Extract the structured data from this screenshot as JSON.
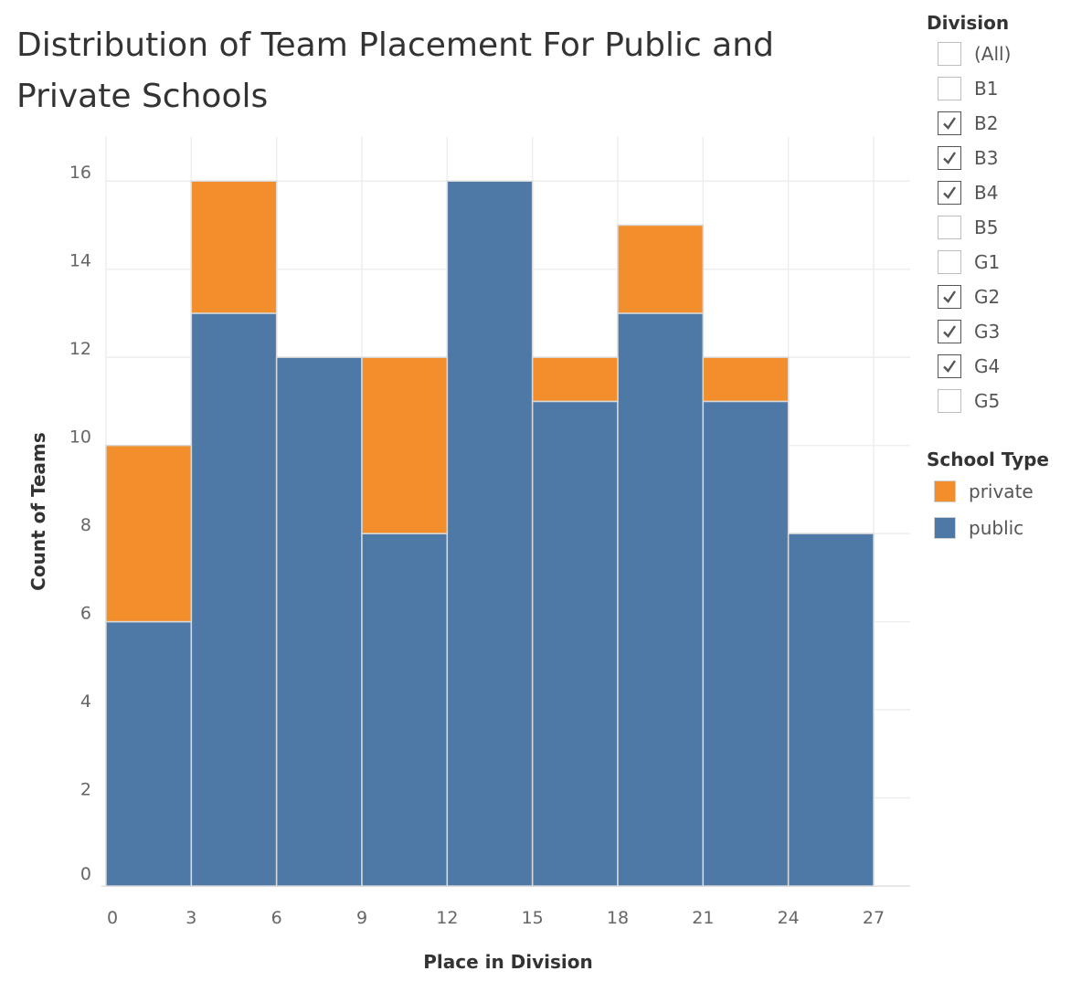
{
  "colors": {
    "private": "#f28e2b",
    "public": "#4e79a7"
  },
  "filter": {
    "title": "Division",
    "items": [
      {
        "label": "(All)",
        "checked": false
      },
      {
        "label": "B1",
        "checked": false
      },
      {
        "label": "B2",
        "checked": true
      },
      {
        "label": "B3",
        "checked": true
      },
      {
        "label": "B4",
        "checked": true
      },
      {
        "label": "B5",
        "checked": false
      },
      {
        "label": "G1",
        "checked": false
      },
      {
        "label": "G2",
        "checked": true
      },
      {
        "label": "G3",
        "checked": true
      },
      {
        "label": "G4",
        "checked": true
      },
      {
        "label": "G5",
        "checked": false
      }
    ]
  },
  "color_legend": {
    "title": "School Type",
    "items": [
      {
        "label": "private",
        "color": "#f28e2b"
      },
      {
        "label": "public",
        "color": "#4e79a7"
      }
    ]
  },
  "chart_data": {
    "type": "bar",
    "stacked": true,
    "title": "Distribution of Team Placement For Public and Private Schools",
    "xlabel": "Place in Division",
    "ylabel": "Count of Teams",
    "bins": [
      [
        0,
        3
      ],
      [
        3,
        6
      ],
      [
        6,
        9
      ],
      [
        9,
        12
      ],
      [
        12,
        15
      ],
      [
        15,
        18
      ],
      [
        18,
        21
      ],
      [
        21,
        24
      ],
      [
        24,
        27
      ]
    ],
    "xticks": [
      0,
      3,
      6,
      9,
      12,
      15,
      18,
      21,
      24,
      27
    ],
    "yticks": [
      0,
      2,
      4,
      6,
      8,
      10,
      12,
      14,
      16
    ],
    "xlim": [
      0,
      27
    ],
    "ylim": [
      0,
      17
    ],
    "grid": true,
    "legend_position": "right",
    "series": [
      {
        "name": "public",
        "color": "#4e79a7",
        "values": [
          6,
          13,
          12,
          8,
          16,
          11,
          13,
          11,
          8
        ]
      },
      {
        "name": "private",
        "color": "#f28e2b",
        "values": [
          4,
          3,
          0,
          4,
          0,
          1,
          2,
          1,
          0
        ]
      }
    ]
  }
}
